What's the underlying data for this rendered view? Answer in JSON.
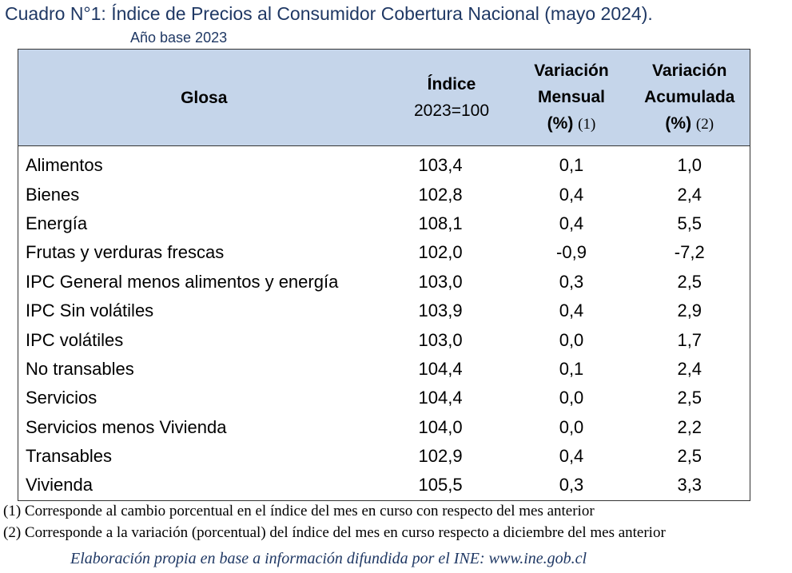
{
  "title": "Cuadro N°1: Índice de Precios al Consumidor Cobertura Nacional (mayo 2024).",
  "subtitle": "Año base 2023",
  "table": {
    "headers": {
      "glosa": "Glosa",
      "indice_line1": "Índice",
      "indice_line2": "2023=100",
      "mensual_line1": "Variación",
      "mensual_line2": "Mensual",
      "mensual_line3": "(%)",
      "mensual_note": "(1)",
      "acumulada_line1": "Variación",
      "acumulada_line2": "Acumulada",
      "acumulada_line3": "(%)",
      "acumulada_note": "(2)"
    },
    "rows": [
      {
        "glosa": "Alimentos",
        "indice": "103,4",
        "mensual": "0,1",
        "acumulada": "1,0"
      },
      {
        "glosa": "Bienes",
        "indice": "102,8",
        "mensual": "0,4",
        "acumulada": "2,4"
      },
      {
        "glosa": "Energía",
        "indice": "108,1",
        "mensual": "0,4",
        "acumulada": "5,5"
      },
      {
        "glosa": "Frutas y verduras frescas",
        "indice": "102,0",
        "mensual": "-0,9",
        "acumulada": "-7,2"
      },
      {
        "glosa": "IPC General menos alimentos y energía",
        "indice": "103,0",
        "mensual": "0,3",
        "acumulada": "2,5"
      },
      {
        "glosa": "IPC Sin volátiles",
        "indice": "103,9",
        "mensual": "0,4",
        "acumulada": "2,9"
      },
      {
        "glosa": "IPC volátiles",
        "indice": "103,0",
        "mensual": "0,0",
        "acumulada": "1,7"
      },
      {
        "glosa": "No transables",
        "indice": "104,4",
        "mensual": "0,1",
        "acumulada": "2,4"
      },
      {
        "glosa": "Servicios",
        "indice": "104,4",
        "mensual": "0,0",
        "acumulada": "2,5"
      },
      {
        "glosa": "Servicios menos Vivienda",
        "indice": "104,0",
        "mensual": "0,0",
        "acumulada": "2,2"
      },
      {
        "glosa": "Transables",
        "indice": "102,9",
        "mensual": "0,4",
        "acumulada": "2,5"
      },
      {
        "glosa": "Vivienda",
        "indice": "105,5",
        "mensual": "0,3",
        "acumulada": "3,3"
      }
    ]
  },
  "footnotes": [
    "(1)  Corresponde al cambio porcentual en el índice del mes en curso con respecto del mes anterior",
    "(2)  Corresponde a la variación (porcentual) del índice del mes en curso respecto a diciembre del mes anterior"
  ],
  "source": "Elaboración propia en base a información difundida por el INE: www.ine.gob.cl",
  "colors": {
    "header_background": "#c5d5ea",
    "title_text": "#1f3864"
  }
}
